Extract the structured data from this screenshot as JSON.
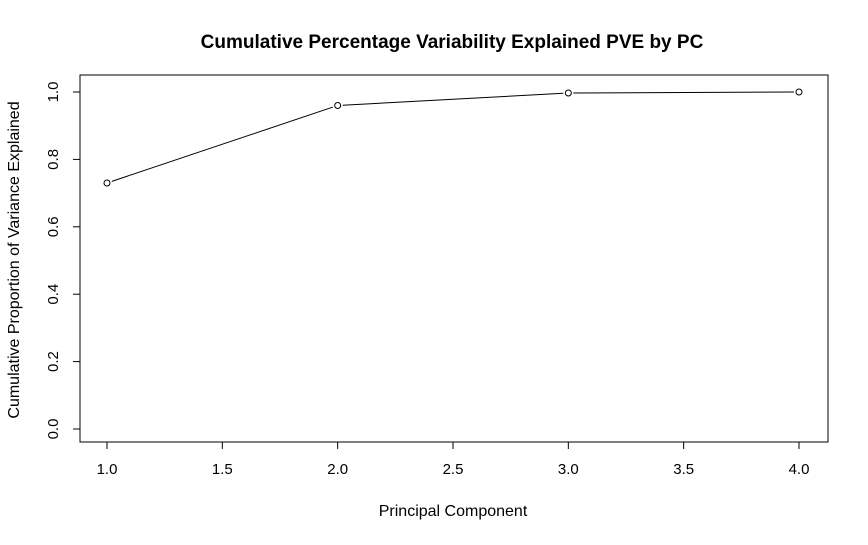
{
  "chart_data": {
    "type": "line",
    "title": "Cumulative Percentage Variability Explained PVE by PC",
    "xlabel": "Principal Component",
    "ylabel": "Cumulative Proportion of Variance Explained",
    "x": [
      1,
      2,
      3,
      4
    ],
    "series": [
      {
        "values": [
          0.73,
          0.96,
          0.997,
          1.0
        ]
      }
    ],
    "xlim": [
      1.0,
      4.0
    ],
    "ylim": [
      0.0,
      1.0
    ],
    "xticks": [
      "1.0",
      "1.5",
      "2.0",
      "2.5",
      "3.0",
      "3.5",
      "4.0"
    ],
    "yticks": [
      "0.0",
      "0.2",
      "0.4",
      "0.6",
      "0.8",
      "1.0"
    ],
    "grid": false,
    "marker": "open-circle",
    "line_color": "#000000"
  }
}
